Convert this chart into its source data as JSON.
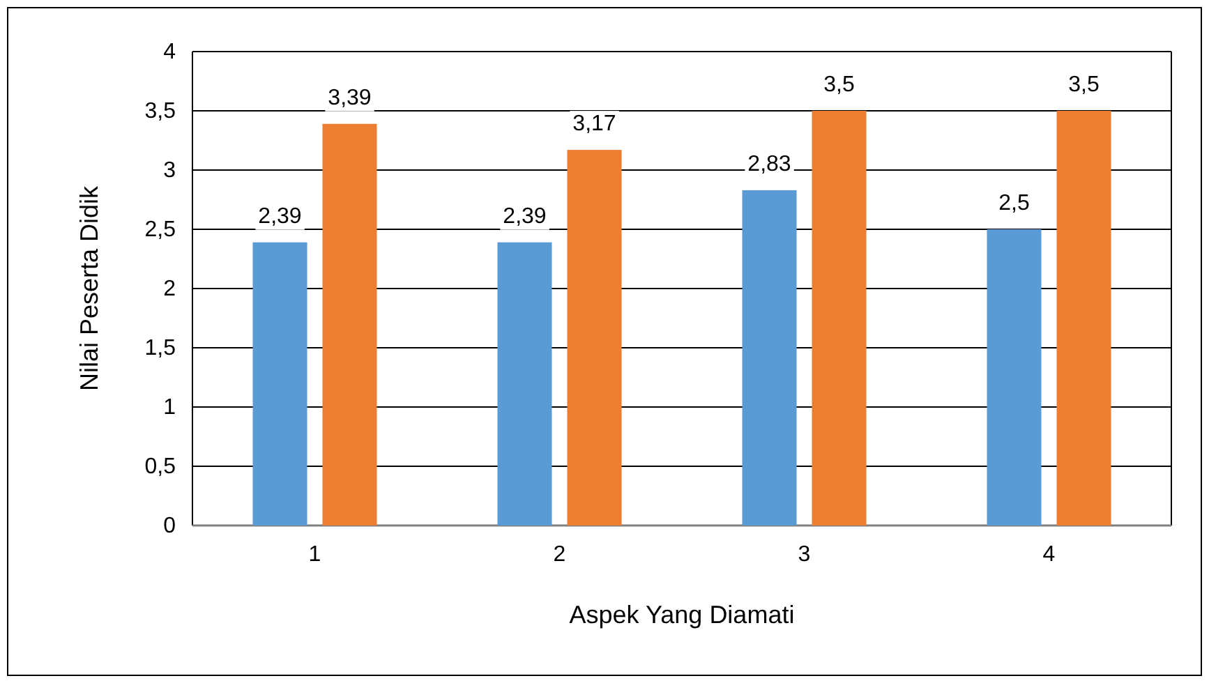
{
  "chart_data": {
    "type": "bar",
    "xlabel": "Aspek Yang Diamati",
    "ylabel": "Nilai Peserta Didik",
    "categories": [
      "1",
      "2",
      "3",
      "4"
    ],
    "series": [
      {
        "color": "#5b9bd5",
        "values": [
          2.39,
          2.39,
          2.83,
          2.5
        ],
        "value_labels": [
          "2,39",
          "2,39",
          "2,83",
          "2,5"
        ]
      },
      {
        "color": "#ed7d31",
        "values": [
          3.39,
          3.17,
          3.5,
          3.5
        ],
        "value_labels": [
          "3,39",
          "3,17",
          "3,5",
          "3,5"
        ]
      }
    ],
    "ylim": [
      0,
      4
    ],
    "yticks": [
      0,
      {
        "value": 0.5,
        "label": "0,5"
      },
      1,
      {
        "value": 1.5,
        "label": "1,5"
      },
      2,
      {
        "value": 2.5,
        "label": "2,5"
      },
      3,
      {
        "value": 3.5,
        "label": "3,5"
      },
      4
    ],
    "grid": "y"
  }
}
